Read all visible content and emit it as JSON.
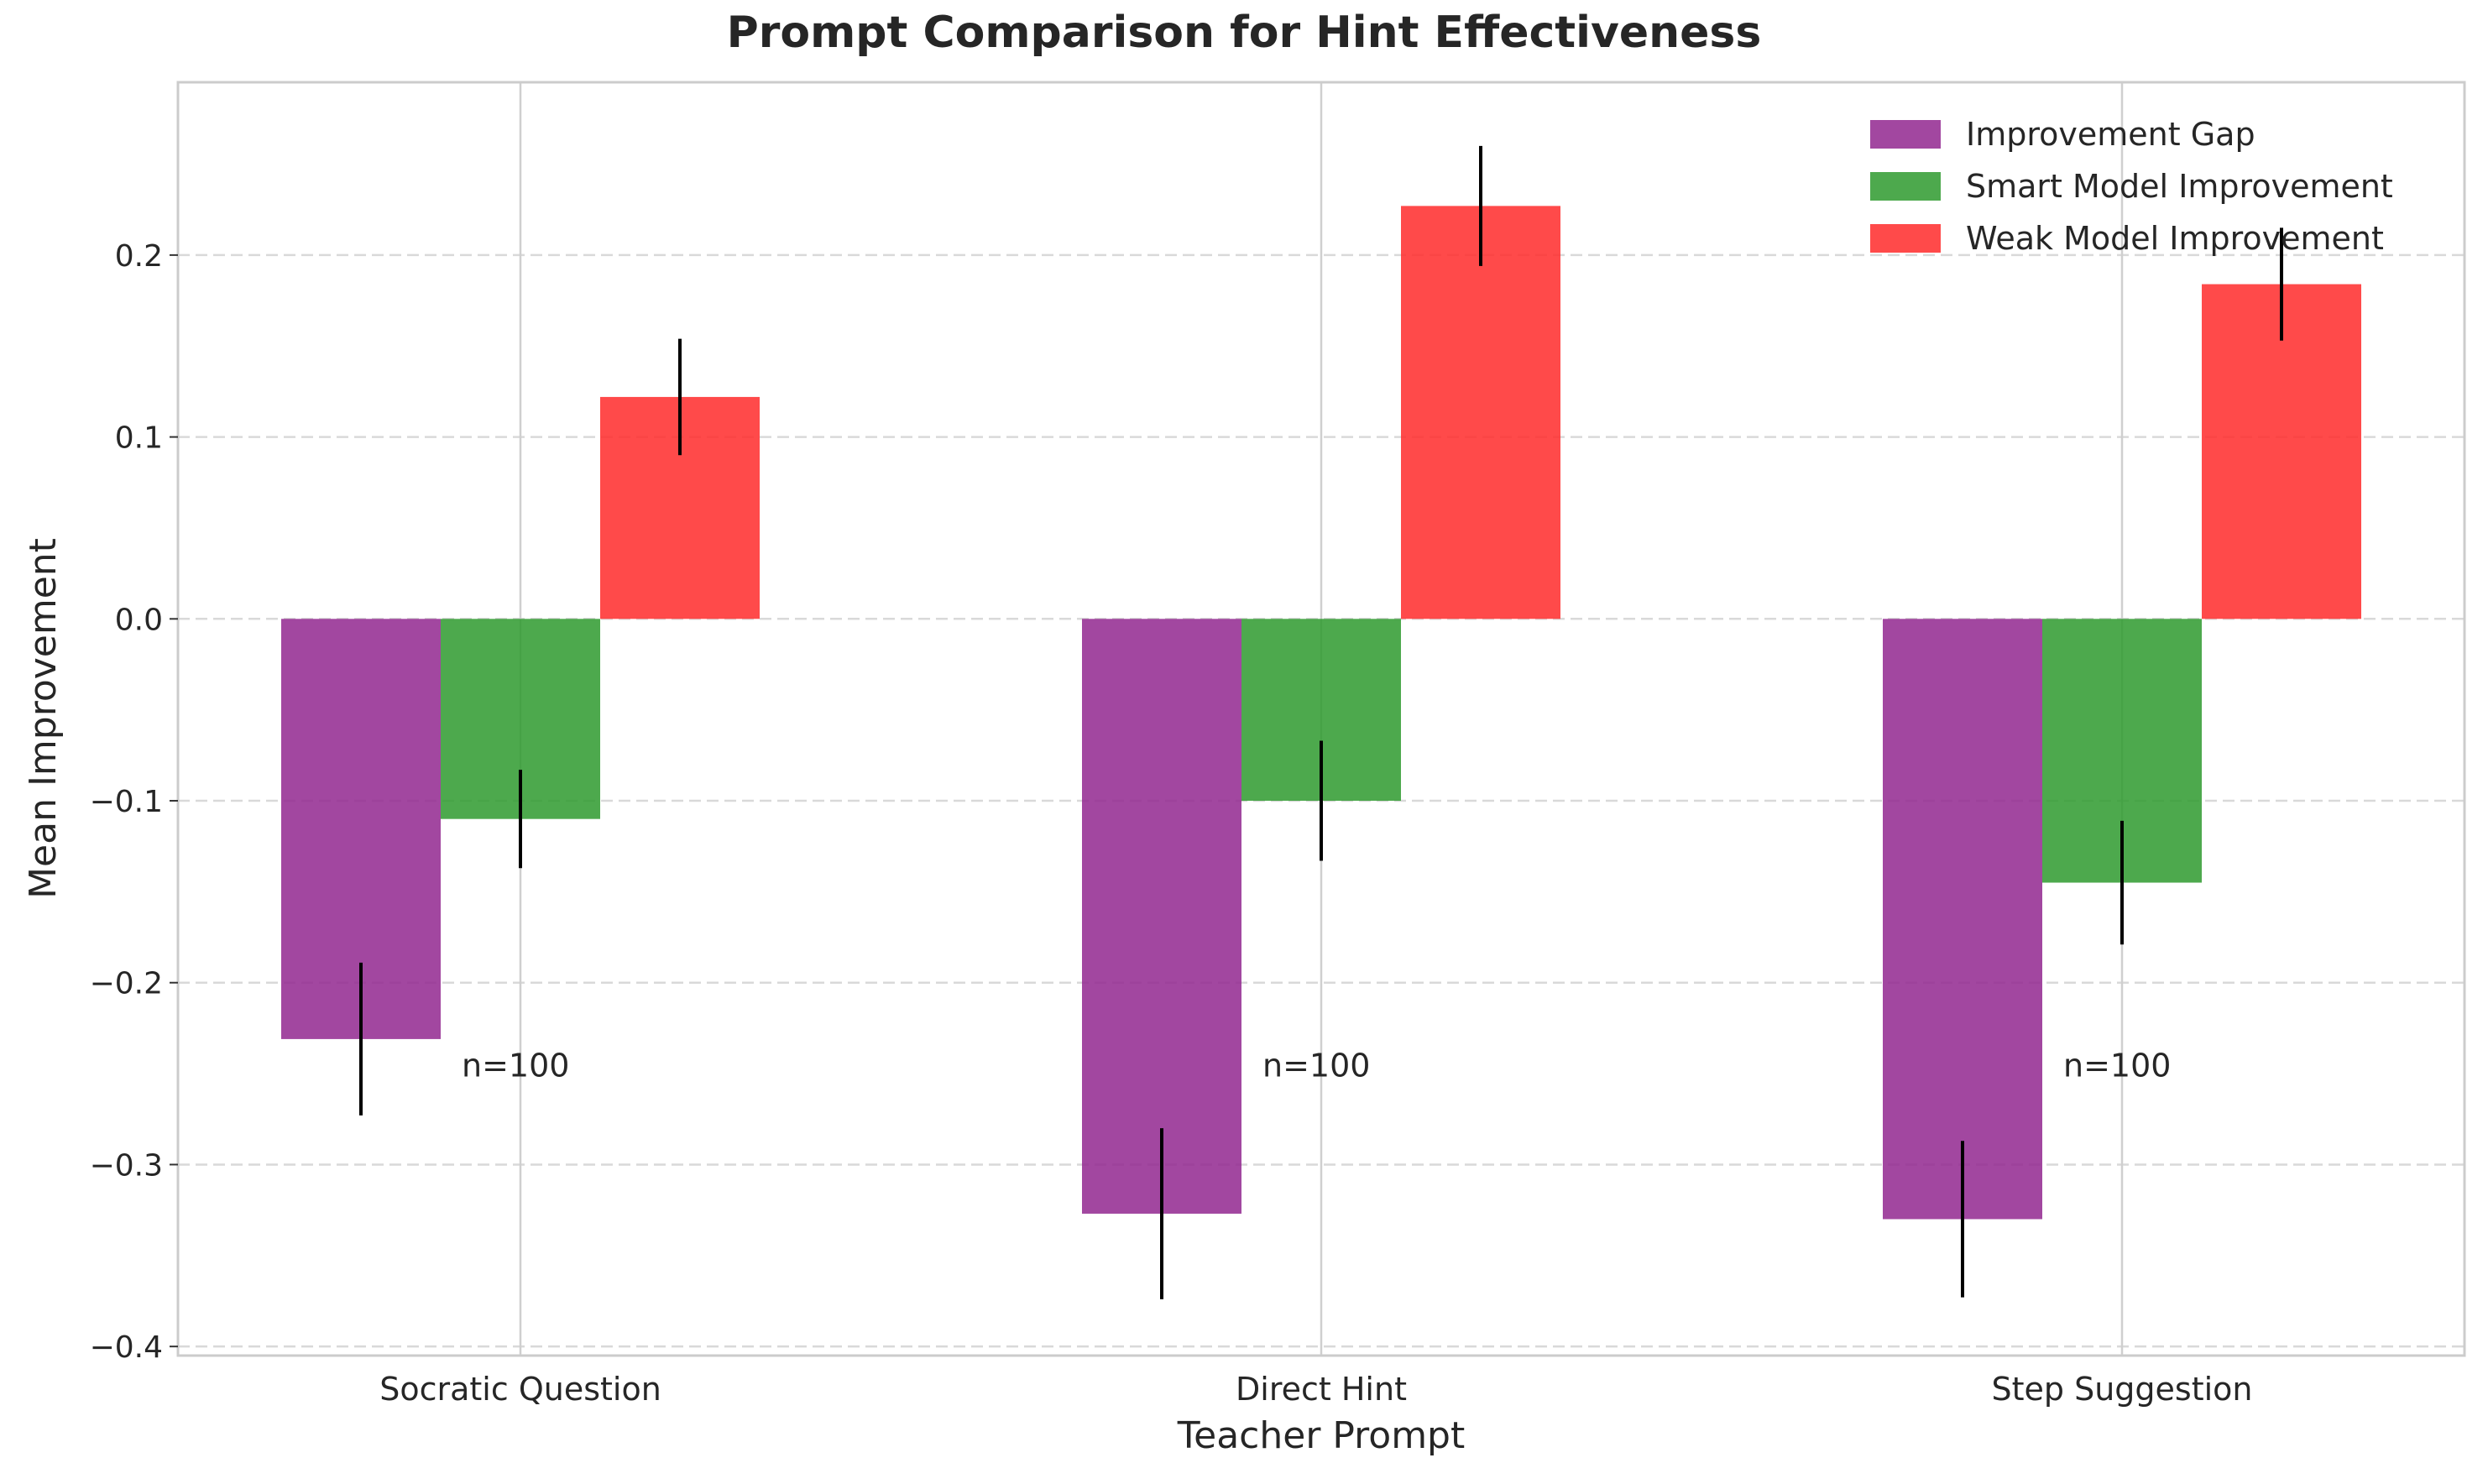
{
  "chart_data": {
    "type": "bar",
    "title": "Prompt Comparison for Hint Effectiveness",
    "xlabel": "Teacher Prompt",
    "ylabel": "Mean Improvement",
    "categories": [
      "Socratic Question",
      "Direct Hint",
      "Step Suggestion"
    ],
    "ylim": [
      -0.405,
      0.295
    ],
    "yticks": [
      -0.4,
      -0.3,
      -0.2,
      -0.1,
      0.0,
      0.1,
      0.2
    ],
    "ytick_labels": [
      "−0.4",
      "−0.3",
      "−0.2",
      "−0.1",
      "0.0",
      "0.1",
      "0.2"
    ],
    "grid": true,
    "legend_position": "top-right",
    "series": [
      {
        "name": "Improvement Gap",
        "color": "#92278f",
        "values": [
          -0.231,
          -0.327,
          -0.33
        ],
        "errors": [
          0.042,
          0.047,
          0.043
        ]
      },
      {
        "name": "Smart Model Improvement",
        "color": "#2e9a2e",
        "values": [
          -0.11,
          -0.1,
          -0.145
        ],
        "errors": [
          0.027,
          0.033,
          0.034
        ]
      },
      {
        "name": "Weak Model Improvement",
        "color": "#ff2a2a",
        "values": [
          0.122,
          0.227,
          0.184
        ],
        "errors": [
          0.032,
          0.033,
          0.031
        ]
      }
    ],
    "annotations": [
      {
        "text": "n=100",
        "category": "Socratic Question",
        "y": -0.245
      },
      {
        "text": "n=100",
        "category": "Direct Hint",
        "y": -0.245
      },
      {
        "text": "n=100",
        "category": "Step Suggestion",
        "y": -0.245
      }
    ]
  }
}
